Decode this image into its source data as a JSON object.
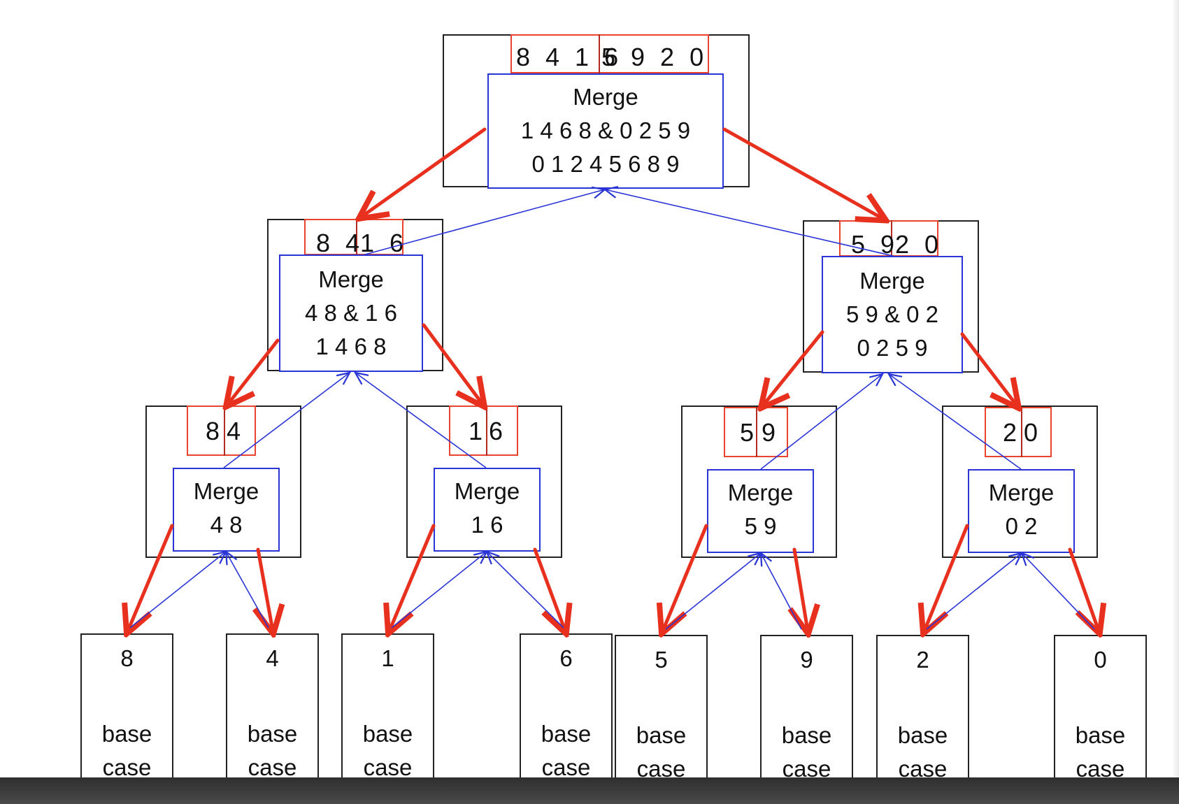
{
  "diagram": {
    "root": {
      "array": [
        "8 4 1 6",
        "5 9 2 0"
      ],
      "merge": [
        "Merge",
        "1 4 6 8  & 0 2 5 9",
        "0 1 2 4 5 6 8 9"
      ]
    },
    "level1": [
      {
        "array": [
          "8 4",
          "1 6"
        ],
        "merge": [
          "Merge",
          "4 8  & 1 6",
          "1 4 6 8"
        ]
      },
      {
        "array": [
          "5 9",
          "2 0"
        ],
        "merge": [
          "Merge",
          "5 9  & 0 2",
          "0 2 5 9"
        ]
      }
    ],
    "level2": [
      {
        "array": [
          "8",
          "4"
        ],
        "merge": [
          "Merge",
          "4 8"
        ]
      },
      {
        "array": [
          "1",
          "6"
        ],
        "merge": [
          "Merge",
          "1 6"
        ]
      },
      {
        "array": [
          "5",
          "9"
        ],
        "merge": [
          "Merge",
          "5 9"
        ]
      },
      {
        "array": [
          "2",
          "0"
        ],
        "merge": [
          "Merge",
          "0 2"
        ]
      }
    ],
    "leaves": [
      {
        "value": "8",
        "label": [
          "base",
          "case"
        ]
      },
      {
        "value": "4",
        "label": [
          "base",
          "case"
        ]
      },
      {
        "value": "1",
        "label": [
          "base",
          "case"
        ]
      },
      {
        "value": "6",
        "label": [
          "base",
          "case"
        ]
      },
      {
        "value": "5",
        "label": [
          "base",
          "case"
        ]
      },
      {
        "value": "9",
        "label": [
          "base",
          "case"
        ]
      },
      {
        "value": "2",
        "label": [
          "base",
          "case"
        ]
      },
      {
        "value": "0",
        "label": [
          "base",
          "case"
        ]
      }
    ],
    "colors": {
      "split_arrow": "#e8301e",
      "merge_arrow": "#2a35d6",
      "array_border": "#e8442e",
      "merge_border": "#2a35d6",
      "node_border": "#222222"
    }
  }
}
